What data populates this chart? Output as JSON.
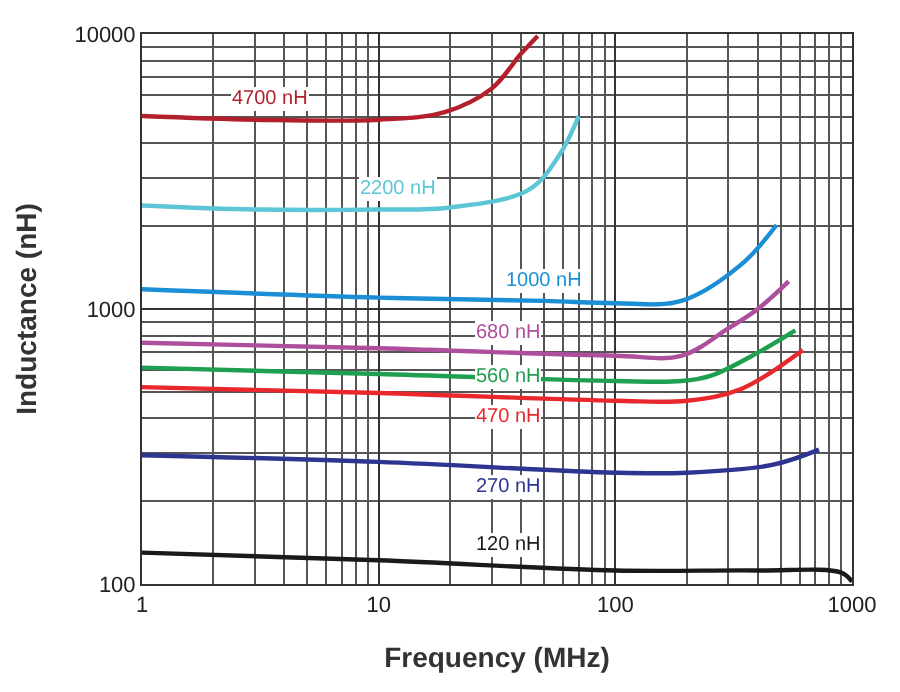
{
  "chart_data": {
    "type": "line",
    "xlabel": "Frequency (MHz)",
    "ylabel": "Inductance (nH)",
    "log": "xy",
    "grid": true,
    "legend": false,
    "marker": "none",
    "line_style": "solid",
    "xlim": [
      1,
      1000
    ],
    "ylim": [
      100,
      10000
    ],
    "xticks": [
      1,
      10,
      100,
      1000
    ],
    "yticks": [
      100,
      1000,
      10000
    ],
    "series": [
      {
        "name": "4700 nH",
        "color": "#b3202c",
        "x": [
          1,
          3,
          10,
          19,
          30,
          40,
          47
        ],
        "values": [
          5030,
          4880,
          4880,
          5200,
          6330,
          8490,
          9840
        ]
      },
      {
        "name": "2200 nH",
        "color": "#5cc6d6",
        "x": [
          1,
          3,
          10,
          20,
          43,
          58,
          70
        ],
        "values": [
          2380,
          2300,
          2300,
          2340,
          2710,
          3630,
          5030
        ]
      },
      {
        "name": "1000 nH",
        "color": "#1b8fd6",
        "x": [
          1,
          10,
          50,
          100,
          190,
          340,
          480
        ],
        "values": [
          1180,
          1100,
          1070,
          1050,
          1070,
          1450,
          2020
        ]
      },
      {
        "name": "680 nH",
        "color": "#ae4f9e",
        "x": [
          1,
          10,
          100,
          190,
          300,
          400,
          540
        ],
        "values": [
          754,
          720,
          676,
          676,
          850,
          1000,
          1260
        ]
      },
      {
        "name": "560 nH",
        "color": "#1ea050",
        "x": [
          1,
          10,
          100,
          190,
          256,
          405,
          576
        ],
        "values": [
          612,
          580,
          547,
          547,
          574,
          698,
          836
        ]
      },
      {
        "name": "470 nH",
        "color": "#e8282c",
        "x": [
          1,
          10,
          100,
          200,
          340,
          620
        ],
        "values": [
          520,
          495,
          464,
          464,
          512,
          710
        ]
      },
      {
        "name": "270 nH",
        "color": "#2d3591",
        "x": [
          1,
          10,
          100,
          200,
          460,
          725
        ],
        "values": [
          294,
          278,
          254,
          254,
          271,
          308
        ]
      },
      {
        "name": "120 nH",
        "color": "#1a1a1a",
        "x": [
          1,
          10,
          100,
          400,
          900,
          1000
        ],
        "values": [
          130,
          122,
          112,
          112,
          110,
          102
        ]
      }
    ]
  }
}
